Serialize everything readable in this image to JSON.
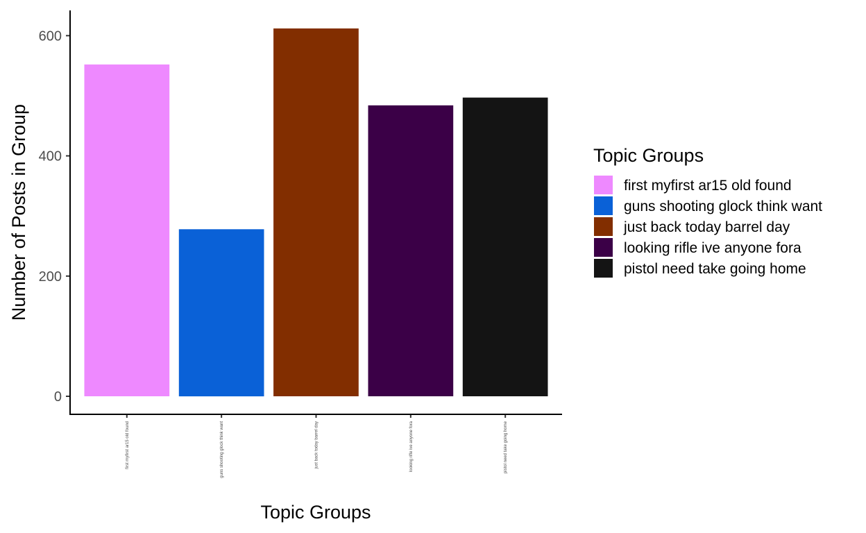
{
  "chart_data": {
    "type": "bar",
    "categories": [
      "first myfirst ar15 old found",
      "guns shooting glock think want",
      "just back today barrel day",
      "looking rifle ive anyone fora",
      "pistol need take going home"
    ],
    "values": [
      552,
      278,
      612,
      484,
      497
    ],
    "colors": [
      "#EE89FF",
      "#0A61D7",
      "#822E00",
      "#3B0047",
      "#141414"
    ],
    "xlabel": "Topic Groups",
    "ylabel": "Number of Posts in Group",
    "ylim": [
      -30,
      642
    ],
    "yticks": [
      0,
      200,
      400,
      600
    ],
    "grid": false,
    "legend": {
      "title": "Topic Groups",
      "position": "right",
      "entries": [
        "first myfirst ar15 old found",
        "guns shooting glock think want",
        "just back today barrel day",
        "looking rifle ive anyone fora",
        "pistol need take going home"
      ]
    }
  }
}
